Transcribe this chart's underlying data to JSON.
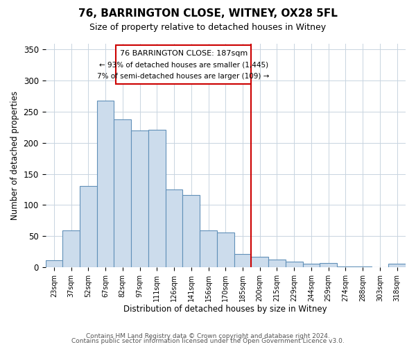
{
  "title": "76, BARRINGTON CLOSE, WITNEY, OX28 5FL",
  "subtitle": "Size of property relative to detached houses in Witney",
  "xlabel": "Distribution of detached houses by size in Witney",
  "ylabel": "Number of detached properties",
  "bar_labels": [
    "23sqm",
    "37sqm",
    "52sqm",
    "67sqm",
    "82sqm",
    "97sqm",
    "111sqm",
    "126sqm",
    "141sqm",
    "156sqm",
    "170sqm",
    "185sqm",
    "200sqm",
    "215sqm",
    "229sqm",
    "244sqm",
    "259sqm",
    "274sqm",
    "288sqm",
    "303sqm",
    "318sqm"
  ],
  "bar_heights": [
    11,
    59,
    131,
    268,
    238,
    220,
    221,
    125,
    116,
    59,
    56,
    21,
    17,
    12,
    9,
    5,
    6,
    1,
    1,
    0,
    5
  ],
  "bar_color": "#ccdcec",
  "bar_edge_color": "#6090b8",
  "vline_index": 11,
  "annotation_title": "76 BARRINGTON CLOSE: 187sqm",
  "annotation_line1": "← 93% of detached houses are smaller (1,445)",
  "annotation_line2": "7% of semi-detached houses are larger (109) →",
  "vline_color": "#cc0000",
  "ylim": [
    0,
    360
  ],
  "yticks": [
    0,
    50,
    100,
    150,
    200,
    250,
    300,
    350
  ],
  "footer1": "Contains HM Land Registry data © Crown copyright and database right 2024.",
  "footer2": "Contains public sector information licensed under the Open Government Licence v3.0.",
  "bg_color": "#ffffff",
  "grid_color": "#c8d4e0"
}
